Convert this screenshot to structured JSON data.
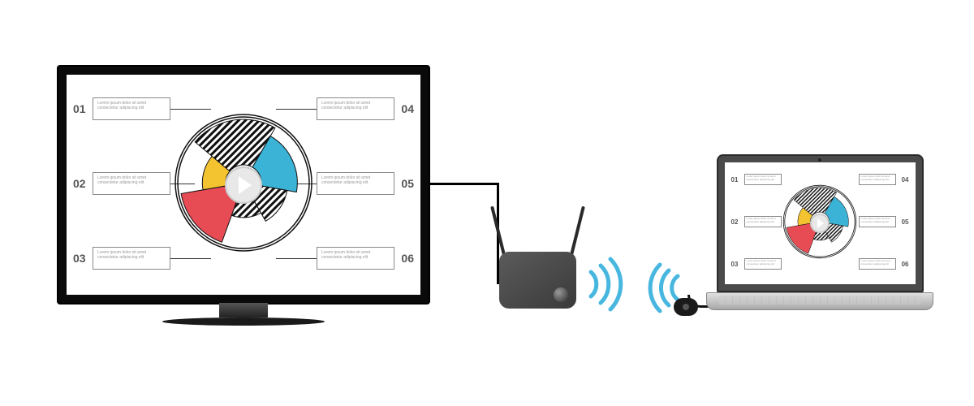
{
  "diagram": {
    "type": "infographic",
    "background_color": "#ffffff",
    "chart": {
      "type": "pie",
      "outer_radius": 78,
      "inner_radius": 22,
      "ring_color": "#111111",
      "segments": [
        {
          "id": "s1",
          "start_deg": 200,
          "sweep_deg": 60,
          "color": "#e74c55",
          "radius_scale": 1.0
        },
        {
          "id": "s2",
          "start_deg": 260,
          "sweep_deg": 50,
          "color": "#f4c430",
          "radius_scale": 0.65
        },
        {
          "id": "s3",
          "start_deg": 310,
          "sweep_deg": 80,
          "color": "stripe",
          "radius_scale": 1.0
        },
        {
          "id": "s4",
          "start_deg": 30,
          "sweep_deg": 70,
          "color": "#3bb3d6",
          "radius_scale": 0.85
        },
        {
          "id": "s5",
          "start_deg": 100,
          "sweep_deg": 50,
          "color": "stripe",
          "radius_scale": 0.7
        },
        {
          "id": "s6",
          "start_deg": 150,
          "sweep_deg": 50,
          "color": "stripe",
          "radius_scale": 0.55
        }
      ],
      "stripe_colors": [
        "#111111",
        "#ffffff"
      ]
    },
    "labels": {
      "left": [
        {
          "num": "01",
          "text": "Lorem ipsum dolor sit amet consectetur adipiscing elit"
        },
        {
          "num": "02",
          "text": "Lorem ipsum dolor sit amet consectetur adipiscing elit"
        },
        {
          "num": "03",
          "text": "Lorem ipsum dolor sit amet consectetur adipiscing elit"
        }
      ],
      "right": [
        {
          "num": "04",
          "text": "Lorem ipsum dolor sit amet consectetur adipiscing elit"
        },
        {
          "num": "05",
          "text": "Lorem ipsum dolor sit amet consectetur adipiscing elit"
        },
        {
          "num": "06",
          "text": "Lorem ipsum dolor sit amet consectetur adipiscing elit"
        }
      ]
    },
    "label_box_border": "#888888",
    "label_text_color": "#999999",
    "label_num_color": "#555555"
  },
  "devices": {
    "tv": {
      "frame_color": "#0a0a0a",
      "screen_bg": "#ffffff"
    },
    "receiver": {
      "body_color": "#4a4a4a"
    },
    "laptop": {
      "lid_color": "#4a4a4a",
      "base_color": "#c8c8c8",
      "screen_bg": "#ffffff"
    },
    "dongle": {
      "color": "#1a1a1a"
    }
  },
  "cable_color": "#000000",
  "wifi": {
    "color": "#47b7e0",
    "arc_count": 3
  }
}
